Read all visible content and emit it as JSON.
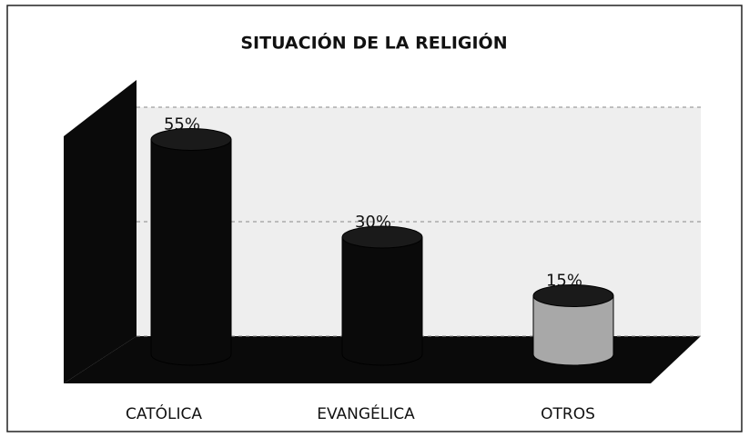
{
  "chart_data": {
    "type": "bar3d",
    "title": "SITUACIÓN DE LA RELIGIÓN",
    "categories": [
      "CATÓLICA",
      "EVANGÉLICA",
      "OTROS"
    ],
    "values": [
      55,
      30,
      15
    ],
    "value_labels": [
      "55%",
      "30%",
      "15%"
    ],
    "colors": [
      "#0a0a0a",
      "#0a0a0a",
      "#a8a8a8"
    ],
    "ylim": [
      0,
      60
    ],
    "yticks": [
      0,
      30,
      60
    ],
    "grid": true
  }
}
